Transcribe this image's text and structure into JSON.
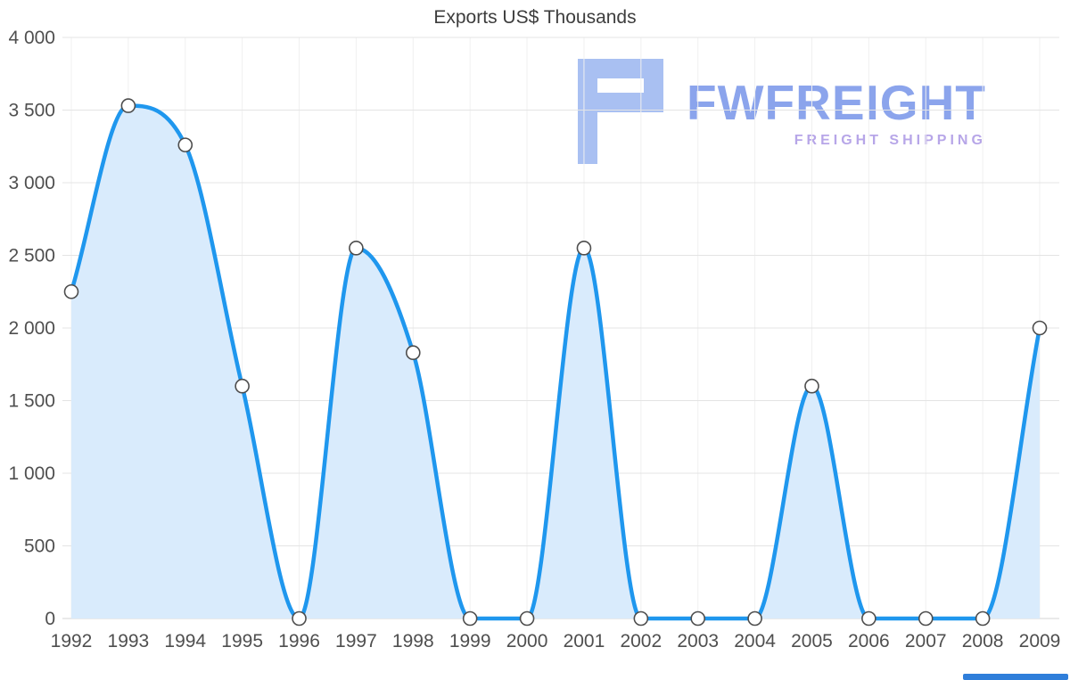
{
  "chart_data": {
    "type": "area",
    "title": "Exports US$ Thousands",
    "categories": [
      "1992",
      "1993",
      "1994",
      "1995",
      "1996",
      "1997",
      "1998",
      "1999",
      "2000",
      "2001",
      "2002",
      "2003",
      "2004",
      "2005",
      "2006",
      "2007",
      "2008",
      "2009"
    ],
    "values": [
      2250,
      3530,
      3260,
      1600,
      0,
      2550,
      1830,
      0,
      0,
      2550,
      0,
      0,
      0,
      1600,
      0,
      0,
      0,
      2000
    ],
    "xlabel": "",
    "ylabel": "",
    "ylim": [
      0,
      4000
    ],
    "ytick_step": 500,
    "ytick_labels": [
      "0",
      "500",
      "1 000",
      "1 500",
      "2 000",
      "2 500",
      "3 000",
      "3 500",
      "4 000"
    ],
    "grid": true,
    "legend": false,
    "line_color": "#1f97ee",
    "area_color": "#d9ebfc",
    "marker_fill": "#ffffff",
    "marker_stroke": "#4d4d4d",
    "grid_color": "#e4e4e4",
    "vgrid_color": "#f0f0f0",
    "baseline_color": "#d6d6d6",
    "tick_label_color": "#4f4f4f"
  },
  "logo": {
    "brand": "FWFREIGHT",
    "tagline": "FREIGHT SHIPPING",
    "brand_color": "#8ba4ec",
    "tagline_color": "#b7a6e8",
    "glyph_color": "#a9c0f2"
  }
}
